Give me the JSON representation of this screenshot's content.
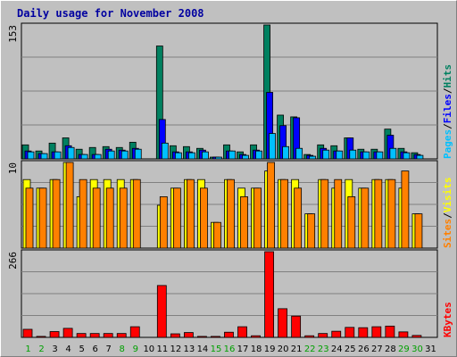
{
  "title": "Daily usage for November 2008",
  "colors": {
    "background": "#c0c0c0",
    "plot_bg": "#c0c0c0",
    "title_text": "#0000a0",
    "hits": "#008060",
    "files": "#0000ff",
    "pages": "#00c0ff",
    "visits": "#ffff00",
    "sites": "#ff8000",
    "kbytes": "#ff0000",
    "weekend_label": "#00a000",
    "weekday_label": "#000000"
  },
  "chart_data": {
    "type": "bar",
    "title": "Daily usage for November 2008",
    "days": [
      "1",
      "2",
      "3",
      "4",
      "5",
      "6",
      "7",
      "8",
      "9",
      "10",
      "11",
      "12",
      "13",
      "14",
      "15",
      "16",
      "17",
      "18",
      "19",
      "20",
      "21",
      "22",
      "23",
      "24",
      "25",
      "26",
      "27",
      "28",
      "29",
      "30",
      "31"
    ],
    "weekend_days": [
      "1",
      "2",
      "8",
      "9",
      "15",
      "16",
      "22",
      "23",
      "29",
      "30"
    ],
    "panels": [
      {
        "name": "hits-files-pages",
        "max_label": "153",
        "ylim": [
          0,
          153
        ],
        "legend": [
          {
            "label": "Hits",
            "color": "#008060"
          },
          {
            "label": "Files",
            "color": "#0000ff"
          },
          {
            "label": "Pages",
            "color": "#00c0ff"
          }
        ],
        "series": [
          {
            "name": "Hits",
            "values": [
              16,
              9,
              18,
              24,
              11,
              13,
              14,
              13,
              19,
              0,
              129,
              15,
              14,
              12,
              2,
              16,
              8,
              16,
              153,
              50,
              48,
              5,
              16,
              15,
              24,
              11,
              11,
              34,
              12,
              7,
              0
            ]
          },
          {
            "name": "Files",
            "values": [
              9,
              6,
              8,
              15,
              5,
              5,
              11,
              10,
              12,
              0,
              45,
              8,
              8,
              10,
              2,
              9,
              5,
              10,
              76,
              38,
              47,
              4,
              12,
              9,
              24,
              8,
              8,
              27,
              8,
              5,
              0
            ]
          },
          {
            "name": "Pages",
            "values": [
              8,
              6,
              8,
              13,
              5,
              5,
              9,
              9,
              11,
              0,
              18,
              7,
              7,
              8,
              2,
              9,
              4,
              9,
              29,
              14,
              12,
              3,
              10,
              9,
              10,
              8,
              8,
              12,
              7,
              4,
              0
            ]
          }
        ]
      },
      {
        "name": "visits-sites",
        "max_label": "10",
        "ylim": [
          0,
          10
        ],
        "legend": [
          {
            "label": "Visits",
            "color": "#ffff00"
          },
          {
            "label": "Sites",
            "color": "#ff8000"
          }
        ],
        "series": [
          {
            "name": "Visits",
            "values": [
              8,
              7,
              8,
              10,
              6,
              8,
              8,
              8,
              8,
              0,
              5,
              7,
              8,
              8,
              3,
              8,
              7,
              7,
              9,
              8,
              8,
              4,
              8,
              7,
              8,
              7,
              8,
              8,
              7,
              4,
              0
            ]
          },
          {
            "name": "Sites",
            "values": [
              7,
              7,
              8,
              10,
              8,
              7,
              7,
              7,
              8,
              0,
              6,
              7,
              8,
              7,
              3,
              8,
              6,
              7,
              10,
              8,
              7,
              4,
              8,
              8,
              6,
              7,
              8,
              8,
              9,
              4,
              0
            ]
          }
        ]
      },
      {
        "name": "kbytes",
        "max_label": "266",
        "ylim": [
          0,
          266
        ],
        "legend": [
          {
            "label": "KBytes",
            "color": "#ff0000"
          }
        ],
        "series": [
          {
            "name": "KBytes",
            "values": [
              25,
              3,
              18,
              28,
              12,
              12,
              12,
              12,
              33,
              0,
              161,
              11,
              15,
              3,
              3,
              16,
              33,
              5,
              266,
              89,
              66,
              5,
              12,
              19,
              31,
              30,
              33,
              35,
              17,
              6,
              0
            ]
          }
        ]
      }
    ]
  }
}
